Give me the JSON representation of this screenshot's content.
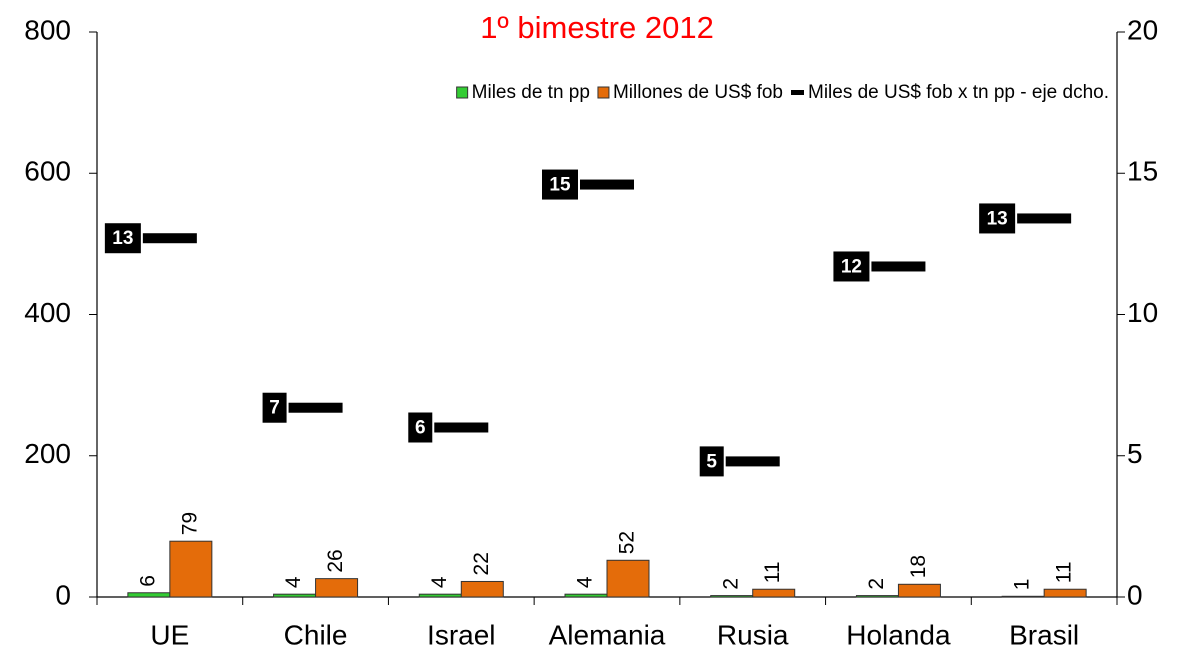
{
  "chart_data": {
    "type": "bar",
    "title": "1º bimestre 2012",
    "categories": [
      "UE",
      "Chile",
      "Israel",
      "Alemania",
      "Rusia",
      "Holanda",
      "Brasil"
    ],
    "series": [
      {
        "name": "Miles de tn pp",
        "color": "#33cc33",
        "type": "bar",
        "values": [
          6,
          4,
          4,
          4,
          2,
          2,
          1
        ]
      },
      {
        "name": "Millones de US$ fob",
        "color": "#e46c0a",
        "type": "bar",
        "values": [
          79,
          26,
          22,
          52,
          11,
          18,
          11
        ]
      },
      {
        "name": "Miles de US$ fob x tn pp - eje dcho.",
        "color": "#000000",
        "type": "dash",
        "axis": "y2",
        "values": [
          12.7,
          6.7,
          6.0,
          14.6,
          4.8,
          11.7,
          13.4
        ],
        "value_labels": [
          "13",
          "7",
          "6",
          "15",
          "5",
          "12",
          "13"
        ]
      }
    ],
    "ylim": [
      0,
      800
    ],
    "yticks": [
      0,
      200,
      400,
      600,
      800
    ],
    "y2lim": [
      0,
      20
    ],
    "y2ticks": [
      0,
      5,
      10,
      15,
      20
    ],
    "grid": false,
    "legend": "top-right",
    "title_color": "#ff0000"
  }
}
